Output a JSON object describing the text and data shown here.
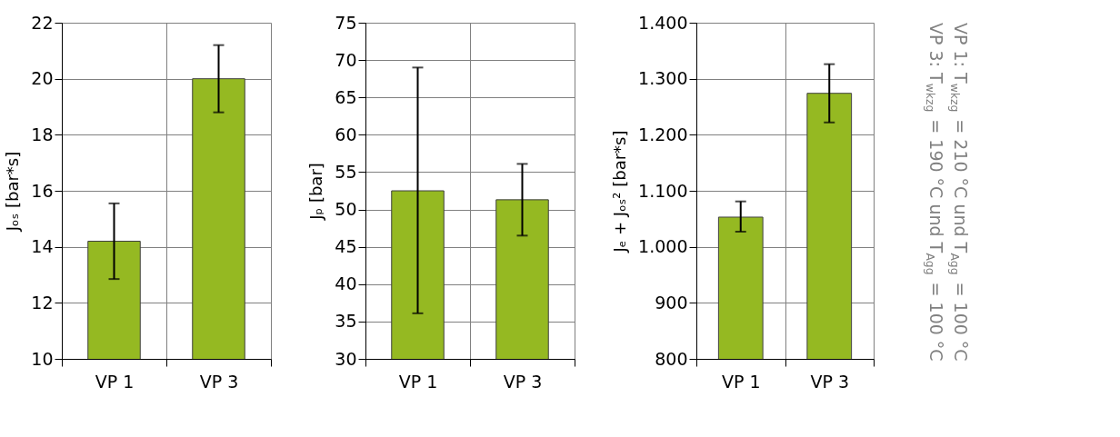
{
  "chart_data": [
    {
      "type": "bar",
      "categories": [
        "VP 1",
        "VP 3"
      ],
      "values": [
        14.2,
        20.0
      ],
      "errors": [
        [
          12.85,
          15.55
        ],
        [
          18.8,
          21.2
        ]
      ],
      "color": "#95b922",
      "ylabel": "Jₒₛ  [bar*s]",
      "ylim": [
        10,
        22
      ],
      "yticks": [
        10,
        12,
        14,
        16,
        18,
        20,
        22
      ],
      "grid": true
    },
    {
      "type": "bar",
      "categories": [
        "VP 1",
        "VP 3"
      ],
      "values": [
        52.5,
        51.3
      ],
      "errors": [
        [
          36.1,
          69.0
        ],
        [
          46.5,
          56.1
        ]
      ],
      "color": "#95b922",
      "ylabel": "Jₚ  [bar]",
      "ylim": [
        30,
        75
      ],
      "yticks": [
        30,
        35,
        40,
        45,
        50,
        55,
        60,
        65,
        70,
        75
      ],
      "grid": true
    },
    {
      "type": "bar",
      "categories": [
        "VP 1",
        "VP 3"
      ],
      "values": [
        1053,
        1274
      ],
      "errors": [
        [
          1027,
          1081
        ],
        [
          1222,
          1326
        ]
      ],
      "color": "#95b922",
      "ylabel": "Jₑ + Jₒₛ²  [bar*s]",
      "ylim": [
        800,
        1400
      ],
      "yticks": [
        800,
        900,
        {
          "value": 1000,
          "label": "1.000"
        },
        {
          "value": 1100,
          "label": "1.100"
        },
        {
          "value": 1200,
          "label": "1.200"
        },
        {
          "value": 1300,
          "label": "1.300"
        },
        {
          "value": 1400,
          "label": "1.400"
        }
      ],
      "grid": true
    },
    {
      "type": "other",
      "annotations": [
        "VP 1: T$_{wkzg}$ = 210 °C und T$_{Agg}$ = 100 °C",
        "VP 3: T$_{wkzg}$ = 190 °C und T$_{Agg}$ = 100 °C"
      ]
    }
  ]
}
